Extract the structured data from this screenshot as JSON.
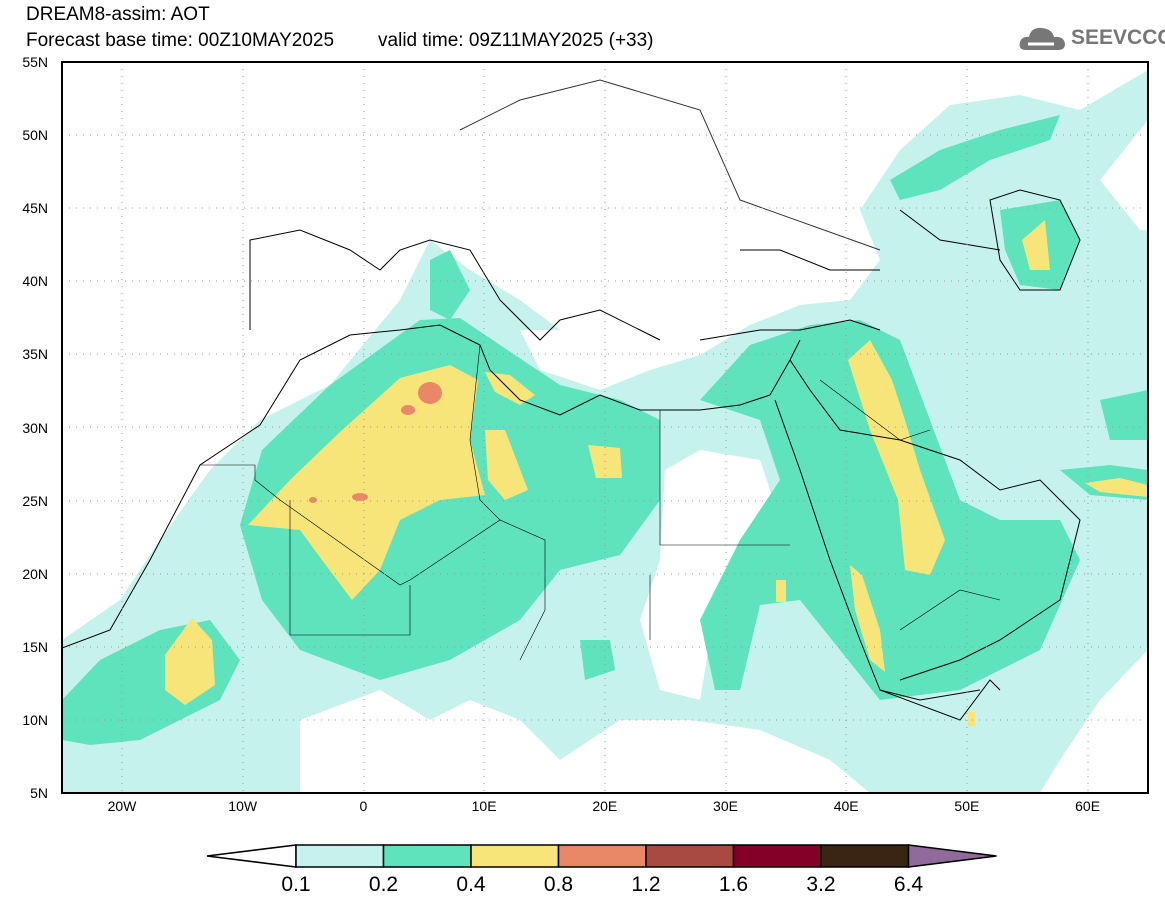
{
  "header": {
    "title": "DREAM8-assim: AOT",
    "base_time": "Forecast base time: 00Z10MAY2025",
    "valid_time": "valid time: 09Z11MAY2025 (+33)"
  },
  "logo": {
    "text": "SEEVCCC",
    "icon": "cloud-icon"
  },
  "map": {
    "lat_labels": [
      "55N",
      "50N",
      "45N",
      "40N",
      "35N",
      "30N",
      "25N",
      "20N",
      "15N",
      "10N",
      "5N"
    ],
    "lon_labels": [
      "20W",
      "10W",
      "0",
      "10E",
      "20E",
      "30E",
      "40E",
      "50E",
      "60E"
    ],
    "extent": {
      "lon": [
        -25,
        65
      ],
      "lat": [
        5,
        55
      ]
    }
  },
  "colorbar": {
    "labels": [
      "0.1",
      "0.2",
      "0.4",
      "0.8",
      "1.2",
      "1.6",
      "3.2",
      "6.4"
    ],
    "colors": [
      "#ffffff",
      "#c5f2ec",
      "#5ee3bd",
      "#f7e57a",
      "#e98866",
      "#a94a42",
      "#850029",
      "#3a2513",
      "#8f6a9b"
    ]
  }
}
